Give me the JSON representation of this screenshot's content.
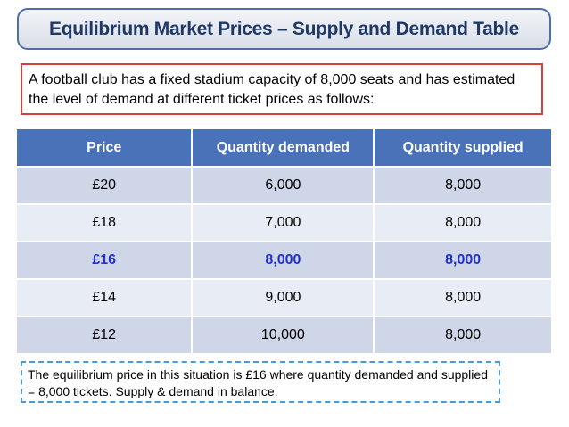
{
  "title": "Equilibrium Market Prices – Supply and Demand Table",
  "intro": "A football club has a fixed stadium capacity of 8,000 seats and has estimated the level of demand at different ticket prices as follows:",
  "table": {
    "headers": [
      "Price",
      "Quantity demanded",
      "Quantity supplied"
    ],
    "rows": [
      [
        "£20",
        "6,000",
        "8,000"
      ],
      [
        "£18",
        "7,000",
        "8,000"
      ],
      [
        "£16",
        "8,000",
        "8,000"
      ],
      [
        "£14",
        "9,000",
        "8,000"
      ],
      [
        "£12",
        "10,000",
        "8,000"
      ]
    ],
    "highlight_color": "#1f33c8",
    "header_color": "#4a72b8"
  },
  "footer": "The equilibrium price in this situation is £16 where quantity demanded and supplied = 8,000 tickets. Supply & demand in balance."
}
